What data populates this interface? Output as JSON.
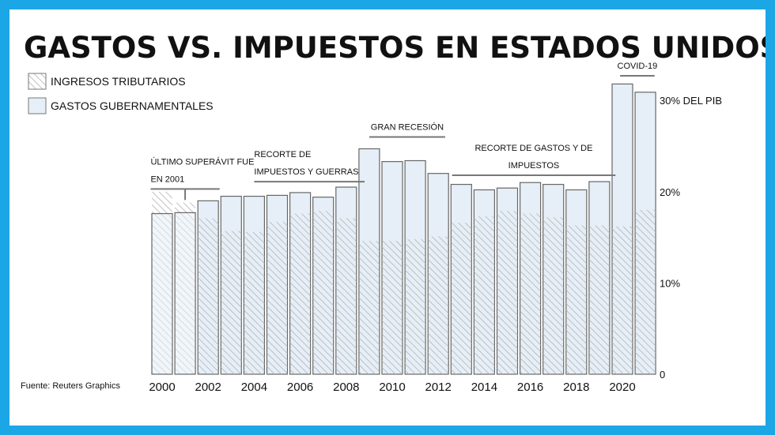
{
  "chart_data": {
    "type": "bar",
    "title": "GASTOS VS. IMPUESTOS EN ESTADOS UNIDOS",
    "source": "Fuente: Reuters Graphics",
    "series": [
      {
        "name": "INGRESOS TRIBUTARIOS",
        "pattern": "hatch",
        "values": [
          20.0,
          18.8,
          17.1,
          15.7,
          15.6,
          16.7,
          17.6,
          17.9,
          17.1,
          14.6,
          14.6,
          14.8,
          15.1,
          16.6,
          17.3,
          17.9,
          17.6,
          17.2,
          16.3,
          16.3,
          16.2,
          18.0
        ]
      },
      {
        "name": "GASTOS GUBERNAMENTALES",
        "color": "#e6eff7",
        "values": [
          17.6,
          17.7,
          19.0,
          19.5,
          19.5,
          19.6,
          19.9,
          19.4,
          20.5,
          24.7,
          23.3,
          23.4,
          22.0,
          20.8,
          20.2,
          20.4,
          21.0,
          20.8,
          20.2,
          21.1,
          31.8,
          30.9
        ]
      }
    ],
    "years": [
      2000,
      2001,
      2002,
      2003,
      2004,
      2005,
      2006,
      2007,
      2008,
      2009,
      2010,
      2011,
      2012,
      2013,
      2014,
      2015,
      2016,
      2017,
      2018,
      2019,
      2020,
      2021
    ],
    "x_tick_labels": [
      "2000",
      "2002",
      "2004",
      "2006",
      "2008",
      "2010",
      "2012",
      "2014",
      "2016",
      "2018",
      "2020"
    ],
    "y_ticks": [
      {
        "value": 0,
        "label": "0"
      },
      {
        "value": 10,
        "label": "10%"
      },
      {
        "value": 20,
        "label": "20%"
      },
      {
        "value": 30,
        "label": "30% DEL PIB"
      }
    ],
    "ylim": [
      0,
      32
    ],
    "annotations": [
      {
        "lines": [
          "ÚLTIMO SUPERÁVIT FUE",
          "EN 2001"
        ],
        "from_year": 1999.5,
        "to_year": 2002.5,
        "tick_year": 2001.0,
        "level": 20.3
      },
      {
        "lines": [
          "RECORTE DE",
          "IMPUESTOS Y GUERRAS"
        ],
        "from_year": 2004,
        "to_year": 2008.8,
        "level": 21.1
      },
      {
        "lines": [
          "GRAN RECESIÓN"
        ],
        "from_year": 2009,
        "to_year": 2012.3,
        "level": 26.0
      },
      {
        "lines": [
          "RECORTE DE GASTOS Y DE",
          "IMPUESTOS"
        ],
        "from_year": 2012.6,
        "to_year": 2019.7,
        "level": 21.8
      },
      {
        "lines": [
          "COVID-19"
        ],
        "from_year": 2019.9,
        "to_year": 2021.4,
        "level": 32.7
      }
    ]
  }
}
